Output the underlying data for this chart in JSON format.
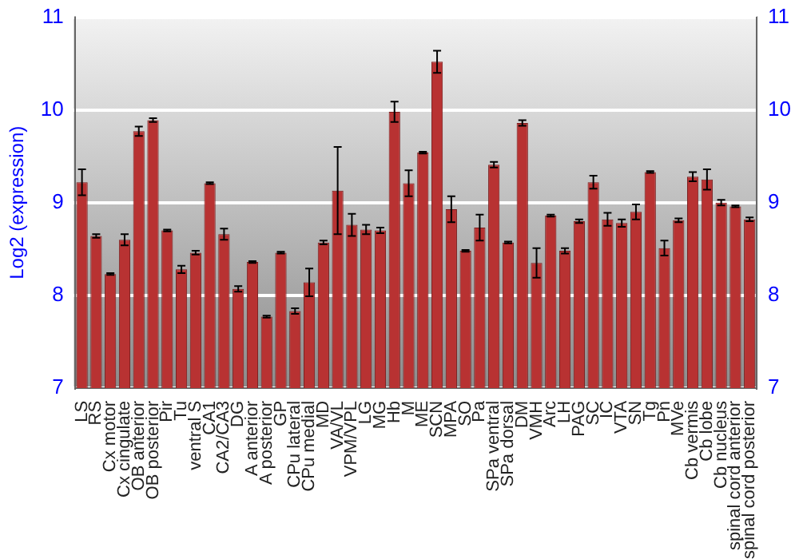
{
  "chart_data": {
    "type": "bar",
    "ylabel": "Log2 (expression)",
    "categories": [
      "LS",
      "RS",
      "Cx motor",
      "Cx cingulate",
      "OB anterior",
      "OB posterior",
      "Pir",
      "Tu",
      "ventral S",
      "CA1",
      "CA2/CA3",
      "DG",
      "A anterior",
      "A posterior",
      "GP",
      "CPu lateral",
      "CPu medial",
      "MD",
      "VA/VL",
      "VPM/VPL",
      "LG",
      "MG",
      "Hb",
      "M",
      "ME",
      "SCN",
      "MPA",
      "SO",
      "Pa",
      "SPa ventral",
      "SPa dorsal",
      "DM",
      "VMH",
      "Arc",
      "LH",
      "PAG",
      "SC",
      "IC",
      "VTA",
      "SN",
      "Tg",
      "Pn",
      "MVe",
      "Cb vermis",
      "Cb lobe",
      "Cb nucleus",
      "spinal cord anterior",
      "spinal cord posterior"
    ],
    "values": [
      9.22,
      8.64,
      8.23,
      8.6,
      9.77,
      9.89,
      8.7,
      8.28,
      8.46,
      9.21,
      8.66,
      8.07,
      8.36,
      7.77,
      8.46,
      7.83,
      8.14,
      8.57,
      9.13,
      8.76,
      8.71,
      8.7,
      9.98,
      9.21,
      9.54,
      10.52,
      8.93,
      8.48,
      8.73,
      9.41,
      8.57,
      9.86,
      8.35,
      8.86,
      8.48,
      8.8,
      9.22,
      8.82,
      8.78,
      8.9,
      9.33,
      8.51,
      8.81,
      9.28,
      9.25,
      9.0,
      8.96,
      8.82
    ],
    "errors": [
      0.14,
      0.02,
      0.01,
      0.06,
      0.05,
      0.02,
      0.01,
      0.04,
      0.02,
      0.01,
      0.06,
      0.03,
      0.01,
      0.01,
      0.01,
      0.03,
      0.15,
      0.02,
      0.47,
      0.12,
      0.05,
      0.03,
      0.11,
      0.14,
      0.01,
      0.12,
      0.14,
      0.01,
      0.14,
      0.03,
      0.01,
      0.03,
      0.16,
      0.01,
      0.03,
      0.02,
      0.07,
      0.07,
      0.04,
      0.08,
      0.01,
      0.08,
      0.02,
      0.05,
      0.11,
      0.03,
      0.01,
      0.02
    ],
    "color": "#b83232",
    "ylim": [
      7,
      11
    ],
    "yticks": [
      7,
      8,
      9,
      10,
      11
    ],
    "y2lim": [
      7,
      11
    ],
    "y2ticks": [
      7,
      8,
      9,
      10,
      11
    ],
    "grid": "y",
    "legend": false
  }
}
